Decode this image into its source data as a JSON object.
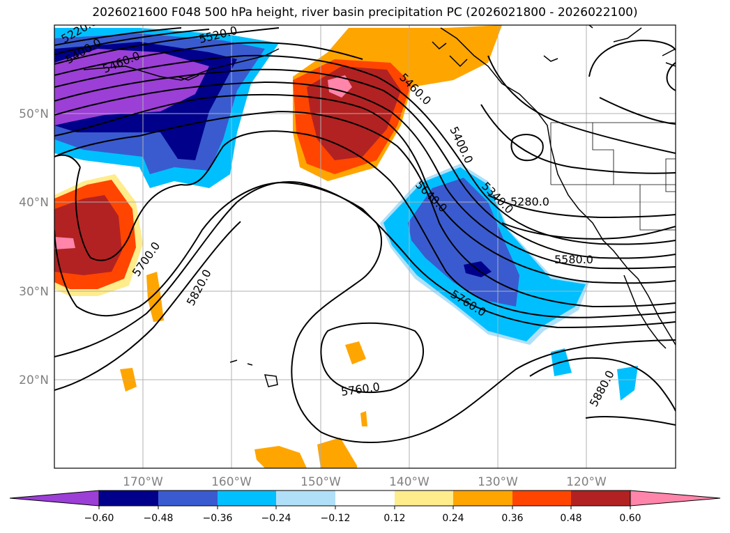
{
  "title": "2026021600 F048 500 hPa height, river basin precipitation PC (2026021800 - 2026022100)",
  "map": {
    "lat_labels": [
      "50°N",
      "40°N",
      "30°N",
      "20°N"
    ],
    "lon_labels": [
      "170°W",
      "160°W",
      "150°W",
      "140°W",
      "130°W",
      "120°W"
    ],
    "contour_labels": [
      "5520.0",
      "5460.0",
      "5400.0",
      "5340.0",
      "5280.0",
      "5640.0",
      "5580.0",
      "5700.0",
      "5820.0",
      "5760.0",
      "5760.0",
      "5880.0",
      "5220.0",
      "5400.0",
      "5460.0"
    ]
  },
  "colorbar": {
    "ticks": [
      "−0.60",
      "−0.48",
      "−0.36",
      "−0.24",
      "−0.12",
      "0.12",
      "0.24",
      "0.36",
      "0.48",
      "0.60"
    ],
    "colors": [
      "#9b3fd6",
      "#00008b",
      "#3a5bcf",
      "#00bfff",
      "#b0e0f8",
      "#ffffff",
      "#ffec8b",
      "#ffa500",
      "#ff4500",
      "#b22222",
      "#ff85aa",
      "#ff85aa"
    ],
    "under_color": "#9b3fd6",
    "over_color": "#ff85aa"
  },
  "colors": {
    "land_outline": "#000000",
    "grid": "#b0b0b0",
    "contour": "#000000"
  }
}
